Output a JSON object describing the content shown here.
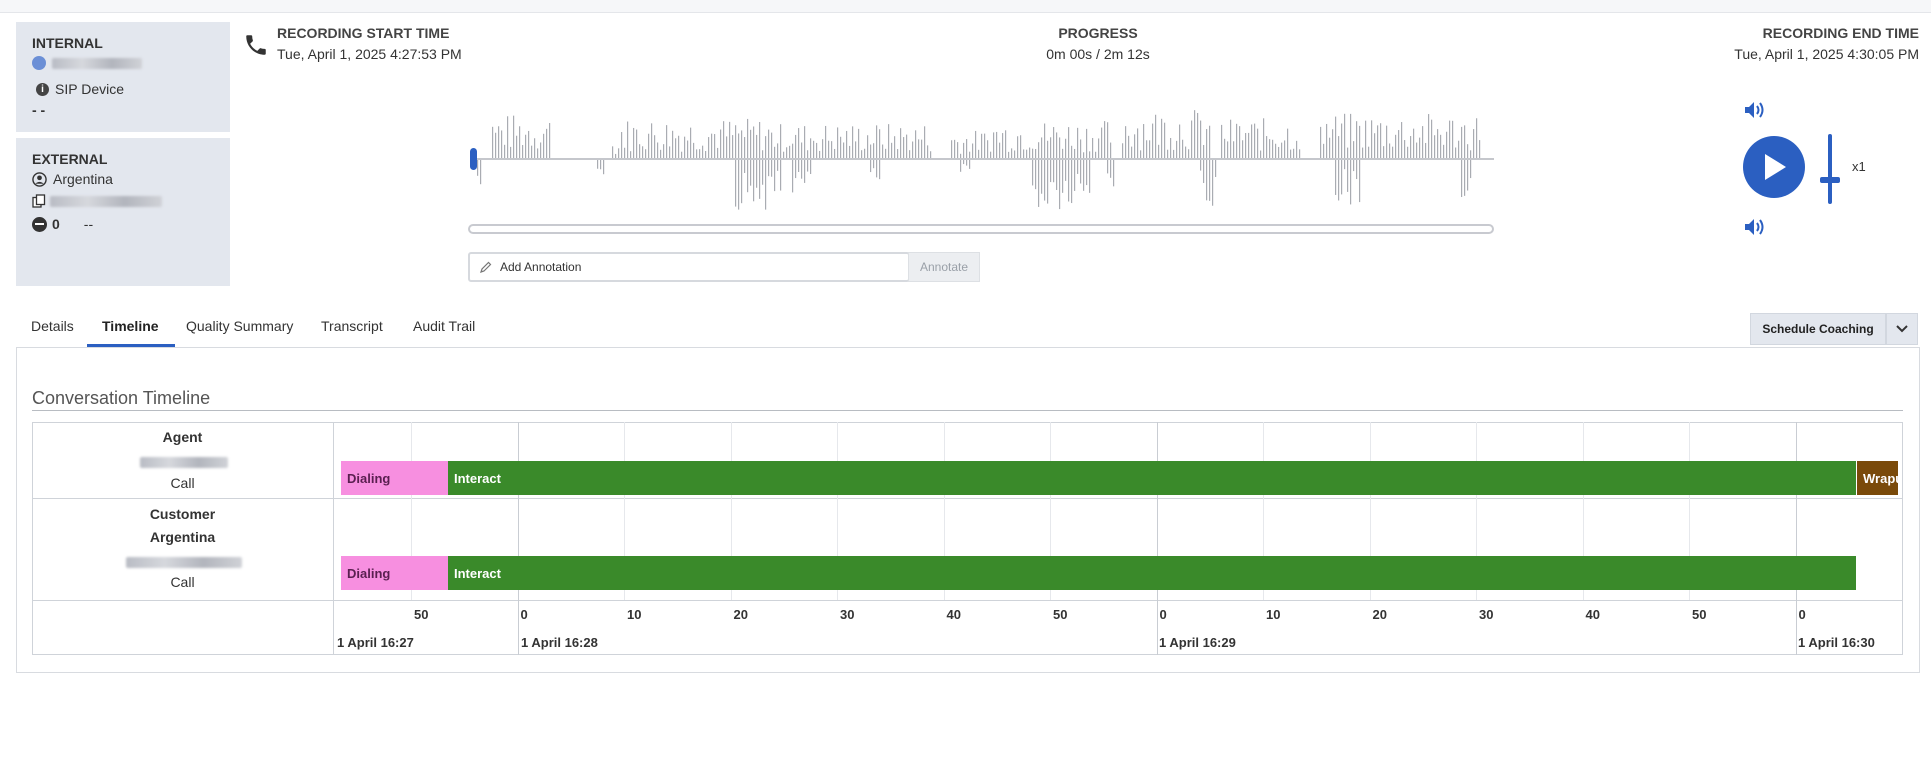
{
  "internal": {
    "title": "INTERNAL",
    "device_label": "SIP Device",
    "extra": "- -"
  },
  "external": {
    "title": "EXTERNAL",
    "location": "Argentina",
    "count": "0",
    "dash": "--"
  },
  "recording": {
    "start_title": "RECORDING START TIME",
    "start_value": "Tue, April 1, 2025 4:27:53 PM",
    "progress_title": "PROGRESS",
    "progress_value": "0m 00s / 2m 12s",
    "end_title": "RECORDING END TIME",
    "end_value": "Tue, April 1, 2025 4:30:05 PM"
  },
  "annotation": {
    "placeholder": "Add Annotation",
    "button": "Annotate"
  },
  "player": {
    "speed": "x1",
    "playback_progress": 0
  },
  "tabs": [
    {
      "label": "Details"
    },
    {
      "label": "Timeline",
      "active": true
    },
    {
      "label": "Quality Summary"
    },
    {
      "label": "Transcript"
    },
    {
      "label": "Audit Trail"
    }
  ],
  "actions": {
    "schedule_coaching": "Schedule Coaching"
  },
  "timeline": {
    "title": "Conversation Timeline",
    "agent": {
      "role": "Agent",
      "media": "Call",
      "segments": [
        {
          "label": "Dialing",
          "type": "dial"
        },
        {
          "label": "Interact",
          "type": "interact"
        },
        {
          "label": "Wrapup",
          "type": "wrap"
        }
      ]
    },
    "customer": {
      "role": "Customer",
      "location": "Argentina",
      "media": "Call",
      "segments": [
        {
          "label": "Dialing",
          "type": "dial"
        },
        {
          "label": "Interact",
          "type": "interact"
        }
      ]
    },
    "ticks": [
      "50",
      "0",
      "10",
      "20",
      "30",
      "40",
      "50",
      "0",
      "10",
      "20",
      "30",
      "40",
      "50",
      "0"
    ],
    "dates": [
      "1 April 16:27",
      "1 April 16:28",
      "1 April 16:29",
      "1 April 16:30"
    ]
  }
}
